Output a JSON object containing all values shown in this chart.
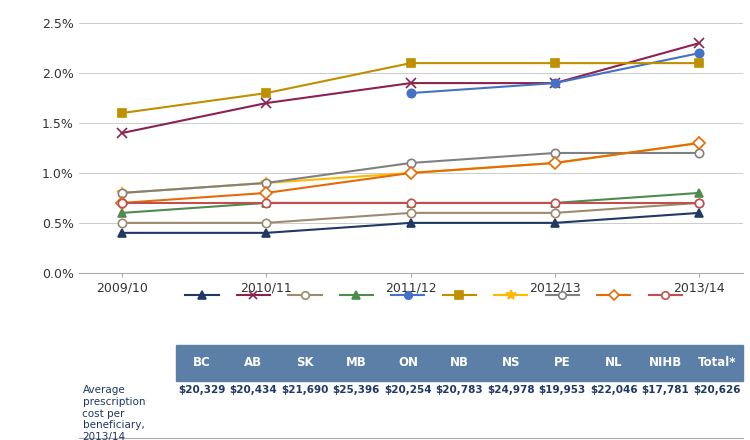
{
  "x_labels": [
    "2009/10",
    "2010/11",
    "2011/12",
    "2012/13",
    "2013/14"
  ],
  "x_values": [
    0,
    1,
    2,
    3,
    4
  ],
  "series": [
    {
      "label": "BC",
      "color": "#1F3864",
      "marker": "^",
      "filled": true,
      "lw": 1.5,
      "ms": 6,
      "values": [
        0.004,
        0.004,
        0.005,
        0.005,
        0.006
      ]
    },
    {
      "label": "AB",
      "color": "#8B2252",
      "marker": "x",
      "filled": true,
      "lw": 1.5,
      "ms": 7,
      "values": [
        0.014,
        0.017,
        0.019,
        0.019,
        0.023
      ]
    },
    {
      "label": "SK",
      "color": "#9C8B6E",
      "marker": "o",
      "filled": false,
      "lw": 1.5,
      "ms": 6,
      "values": [
        0.005,
        0.005,
        0.006,
        0.006,
        0.007
      ]
    },
    {
      "label": "MB",
      "color": "#4E8B4E",
      "marker": "^",
      "filled": true,
      "lw": 1.5,
      "ms": 6,
      "values": [
        0.006,
        0.007,
        0.007,
        0.007,
        0.008
      ]
    },
    {
      "label": "ON",
      "color": "#4472C4",
      "marker": "o",
      "filled": true,
      "lw": 1.5,
      "ms": 6,
      "values": [
        null,
        null,
        0.018,
        0.019,
        0.022
      ]
    },
    {
      "label": "NB",
      "color": "#BF8F00",
      "marker": "s",
      "filled": true,
      "lw": 1.5,
      "ms": 6,
      "values": [
        0.016,
        0.018,
        0.021,
        0.021,
        0.021
      ]
    },
    {
      "label": "NS",
      "color": "#FFB900",
      "marker": "*",
      "filled": true,
      "lw": 1.5,
      "ms": 8,
      "values": [
        0.008,
        0.009,
        0.01,
        0.011,
        0.013
      ]
    },
    {
      "label": "PE",
      "color": "#808080",
      "marker": "o",
      "filled": false,
      "lw": 1.5,
      "ms": 6,
      "values": [
        0.008,
        0.009,
        0.011,
        0.012,
        0.012
      ]
    },
    {
      "label": "NL",
      "color": "#E36C09",
      "marker": "D",
      "filled": false,
      "lw": 1.5,
      "ms": 6,
      "values": [
        0.007,
        0.008,
        0.01,
        0.011,
        0.013
      ]
    },
    {
      "label": "NIHB",
      "color": "#C0504D",
      "marker": "o",
      "filled": false,
      "lw": 1.5,
      "ms": 6,
      "values": [
        0.007,
        0.007,
        0.007,
        0.007,
        0.007
      ]
    }
  ],
  "table_headers": [
    "BC",
    "AB",
    "SK",
    "MB",
    "ON",
    "NB",
    "NS",
    "PE",
    "NL",
    "NIHB",
    "Total*"
  ],
  "table_row_label": "Average\nprescription\ncost per\nbeneficiary,\n2013/14",
  "table_values": [
    "$20,329",
    "$20,434",
    "$21,690",
    "$25,396",
    "$20,254",
    "$20,783",
    "$24,978",
    "$19,953",
    "$22,046",
    "$17,781",
    "$20,626"
  ],
  "header_bg": "#5B7FA6",
  "ylim": [
    0.0,
    0.026
  ],
  "yticks": [
    0.0,
    0.005,
    0.01,
    0.015,
    0.02,
    0.025
  ],
  "ytick_labels": [
    "0.0%",
    "0.5%",
    "1.0%",
    "1.5%",
    "2.0%",
    "2.5%"
  ]
}
